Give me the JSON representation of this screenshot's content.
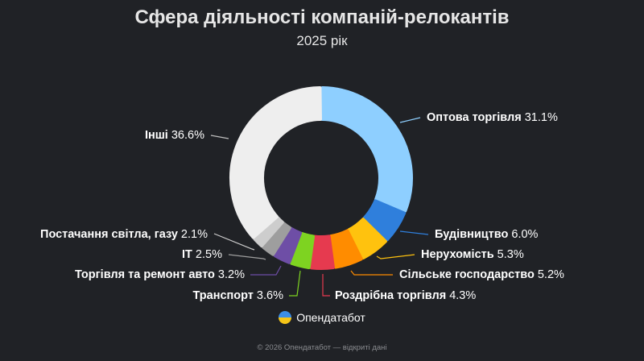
{
  "chart_data": {
    "type": "pie",
    "variant": "donut",
    "title": "Сфера діяльності компаній-релокантів",
    "subtitle": "2025 рік",
    "unit": "%",
    "slices": [
      {
        "label": "Оптова торгівля",
        "value": 31.1,
        "display": "31.1%",
        "color": "#8ecfff"
      },
      {
        "label": "Будівництво",
        "value": 6.0,
        "display": "6.0%",
        "color": "#2f7fdc"
      },
      {
        "label": "Нерухомість",
        "value": 5.3,
        "display": "5.3%",
        "color": "#ffc20e"
      },
      {
        "label": "Сільське господарство",
        "value": 5.2,
        "display": "5.2%",
        "color": "#ff8c00"
      },
      {
        "label": "Роздрібна торгівля",
        "value": 4.3,
        "display": "4.3%",
        "color": "#e63a4f"
      },
      {
        "label": "Транспорт",
        "value": 3.6,
        "display": "3.6%",
        "color": "#7ed321"
      },
      {
        "label": "Торгівля та ремонт авто",
        "value": 3.2,
        "display": "3.2%",
        "color": "#6e4ea6"
      },
      {
        "label": "IT",
        "value": 2.5,
        "display": "2.5%",
        "color": "#9e9e9e"
      },
      {
        "label": "Постачання світла, газу",
        "value": 2.1,
        "display": "2.1%",
        "color": "#cdcdcd"
      },
      {
        "label": "Інші",
        "value": 36.6,
        "display": "36.6%",
        "color": "#eeeeee"
      }
    ]
  },
  "brand": {
    "name": "Опендатабот",
    "icon": "opendatabot-logo"
  },
  "footer": "© 2026 Опендатабот — відкриті дані",
  "background": "#202226"
}
